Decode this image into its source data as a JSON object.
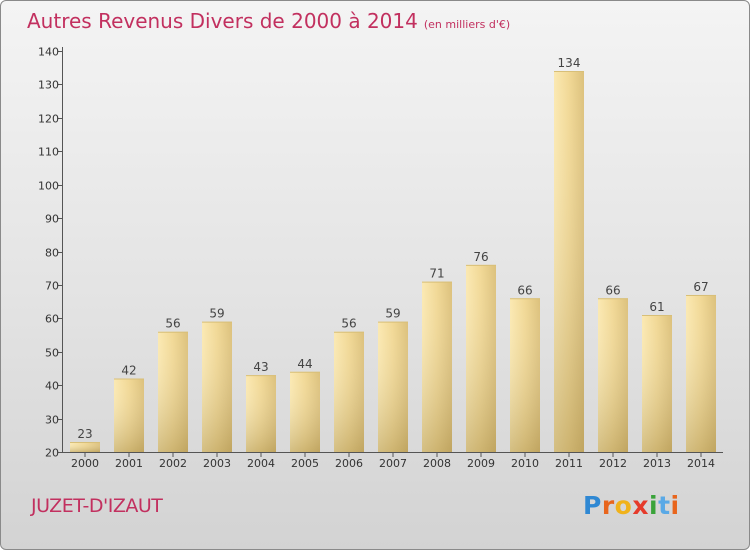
{
  "title": "Autres Revenus Divers de 2000 à 2014",
  "subtitle": "(en milliers d'€)",
  "commune": "JUZET-D'IZAUT",
  "logo": {
    "letters": [
      "P",
      "r",
      "o",
      "x",
      "i",
      "t",
      "i"
    ],
    "colors": [
      "#2f88d3",
      "#e8651c",
      "#f0b21a",
      "#e53a2a",
      "#3aa33a",
      "#5aa9e6",
      "#e8651c"
    ]
  },
  "colors": {
    "accent": "#c2305f",
    "bar_light": "#f6dfa0",
    "bar_dark": "#c9ad63",
    "axis": "#555555"
  },
  "chart_data": {
    "type": "bar",
    "categories": [
      "2000",
      "2001",
      "2002",
      "2003",
      "2004",
      "2005",
      "2006",
      "2007",
      "2008",
      "2009",
      "2010",
      "2011",
      "2012",
      "2013",
      "2014"
    ],
    "values": [
      23,
      42,
      56,
      59,
      43,
      44,
      56,
      59,
      71,
      76,
      66,
      134,
      66,
      61,
      67
    ],
    "ylim": [
      20,
      140
    ],
    "yticks": [
      20,
      30,
      40,
      50,
      60,
      70,
      80,
      90,
      100,
      110,
      120,
      130,
      140
    ],
    "grid": false,
    "data_labels": true
  }
}
